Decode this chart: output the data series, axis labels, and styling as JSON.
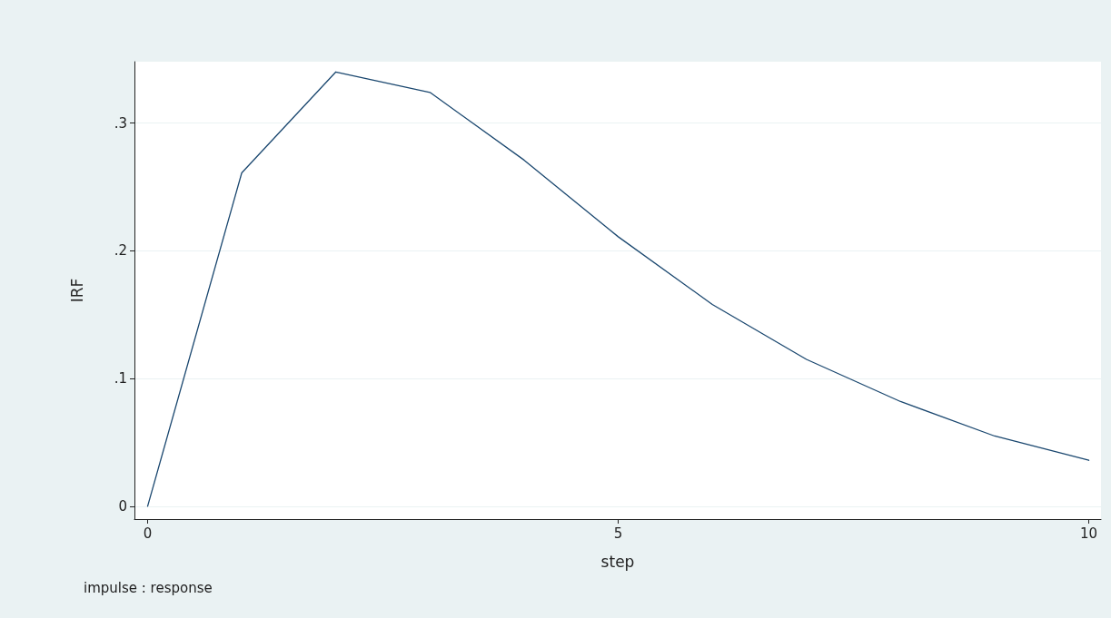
{
  "chart_data": {
    "type": "line",
    "xlabel": "step",
    "ylabel": "IRF",
    "annotations": [
      "impulse : response"
    ],
    "x": [
      0,
      1,
      2,
      3,
      4,
      5,
      6,
      7,
      8,
      9,
      10
    ],
    "series": [
      {
        "color": "#1a476f",
        "values": [
          0,
          0.261,
          0.34,
          0.324,
          0.271,
          0.211,
          0.158,
          0.115,
          0.082,
          0.055,
          0.036
        ]
      }
    ],
    "xlim": [
      -0.14,
      10.13
    ],
    "xticks": [
      0,
      5,
      10
    ],
    "ylim": [
      -0.01,
      0.348
    ],
    "yticks": [
      {
        "value": 0,
        "label": "0"
      },
      {
        "value": 0.1,
        "label": ".1"
      },
      {
        "value": 0.2,
        "label": ".2"
      },
      {
        "value": 0.3,
        "label": ".3"
      }
    ],
    "grid": "y",
    "marker": "none",
    "line_style": "solid"
  }
}
